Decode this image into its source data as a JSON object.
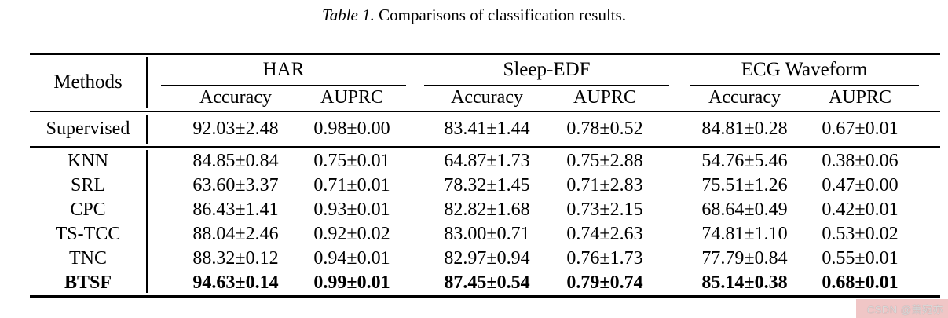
{
  "title": {
    "prefix": "Table 1.",
    "text": " Comparisons of classification results."
  },
  "table": {
    "methods_header": "Methods",
    "groups": [
      {
        "label": "HAR",
        "sub_accuracy": "Accuracy",
        "sub_auprc": "AUPRC"
      },
      {
        "label": "Sleep-EDF",
        "sub_accuracy": "Accuracy",
        "sub_auprc": "AUPRC"
      },
      {
        "label": "ECG Waveform",
        "sub_accuracy": "Accuracy",
        "sub_auprc": "AUPRC"
      }
    ],
    "supervised_row": {
      "method": "Supervised",
      "values": [
        "92.03±2.48",
        "0.98±0.00",
        "83.41±1.44",
        "0.78±0.52",
        "84.81±0.28",
        "0.67±0.01"
      ]
    },
    "rows": [
      {
        "method": "KNN",
        "values": [
          "84.85±0.84",
          "0.75±0.01",
          "64.87±1.73",
          "0.75±2.88",
          "54.76±5.46",
          "0.38±0.06"
        ]
      },
      {
        "method": "SRL",
        "values": [
          "63.60±3.37",
          "0.71±0.01",
          "78.32±1.45",
          "0.71±2.83",
          "75.51±1.26",
          "0.47±0.00"
        ]
      },
      {
        "method": "CPC",
        "values": [
          "86.43±1.41",
          "0.93±0.01",
          "82.82±1.68",
          "0.73±2.15",
          "68.64±0.49",
          "0.42±0.01"
        ]
      },
      {
        "method": "TS-TCC",
        "values": [
          "88.04±2.46",
          "0.92±0.02",
          "83.00±0.71",
          "0.74±2.63",
          "74.81±1.10",
          "0.53±0.02"
        ]
      },
      {
        "method": "TNC",
        "values": [
          "88.32±0.12",
          "0.94±0.01",
          "82.97±0.94",
          "0.76±1.73",
          "77.79±0.84",
          "0.55±0.01"
        ]
      },
      {
        "method": "BTSF",
        "values": [
          "94.63±0.14",
          "0.99±0.01",
          "87.45±0.54",
          "0.79±0.74",
          "85.14±0.38",
          "0.68±0.01"
        ]
      }
    ]
  },
  "watermark": {
    "text": "CSDN @萧宛亦",
    "bg_color": "#f0c6c6",
    "text_color": "#d9d9d9"
  }
}
